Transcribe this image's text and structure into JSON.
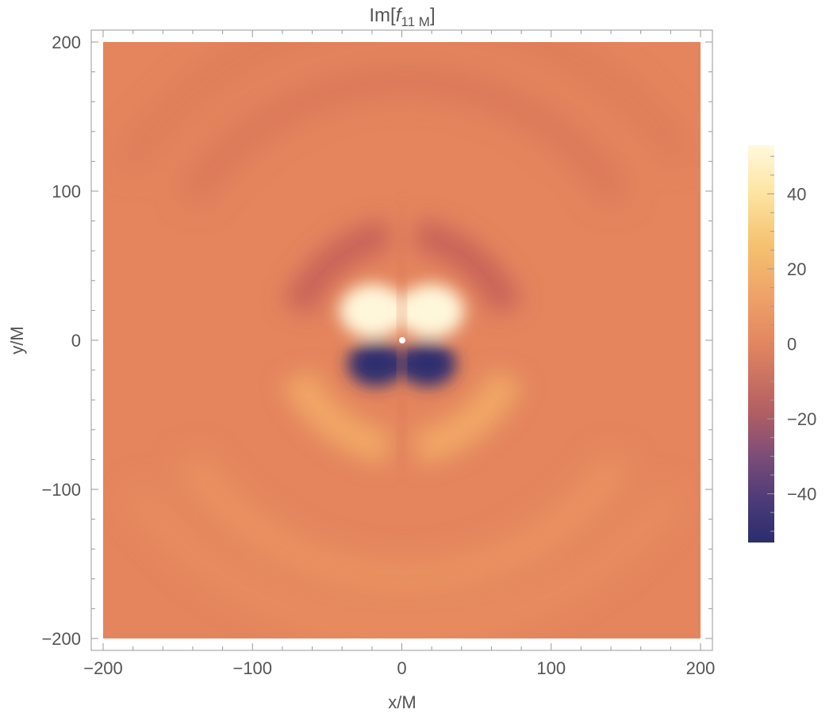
{
  "chart_data": {
    "type": "heatmap",
    "title_main": "Im[",
    "title_func": "f",
    "title_sub": "11 M",
    "title_close": "]",
    "xlabel": "x/M",
    "ylabel": "y/M",
    "xlim": [
      -200,
      200
    ],
    "ylim": [
      -200,
      200
    ],
    "x_ticks": [
      -200,
      -100,
      0,
      100,
      200
    ],
    "y_ticks": [
      -200,
      -100,
      0,
      100,
      200
    ],
    "x_tick_labels": [
      "−200",
      "−100",
      "0",
      "100",
      "200"
    ],
    "y_tick_labels": [
      "−200",
      "−100",
      "0",
      "100",
      "200"
    ],
    "colorbar": {
      "range": [
        -53,
        53
      ],
      "ticks": [
        40,
        20,
        0,
        -20,
        -40
      ],
      "tick_labels": [
        "40",
        "20",
        "0",
        "−20",
        "−40"
      ],
      "colors": [
        "#2b2d6e",
        "#6b4a80",
        "#b35f63",
        "#d97a5c",
        "#e88d62",
        "#f2b86a",
        "#fde8a8",
        "#fff9dd"
      ]
    },
    "field": {
      "description_values": {
        "peak_positive": 52,
        "peak_negative": -52,
        "positive_lobes_center": [
          [
            -20,
            20
          ],
          [
            20,
            20
          ]
        ],
        "negative_lobes_center": [
          [
            -20,
            -18
          ],
          [
            20,
            -18
          ]
        ],
        "marker": [
          0,
          0
        ]
      }
    }
  }
}
